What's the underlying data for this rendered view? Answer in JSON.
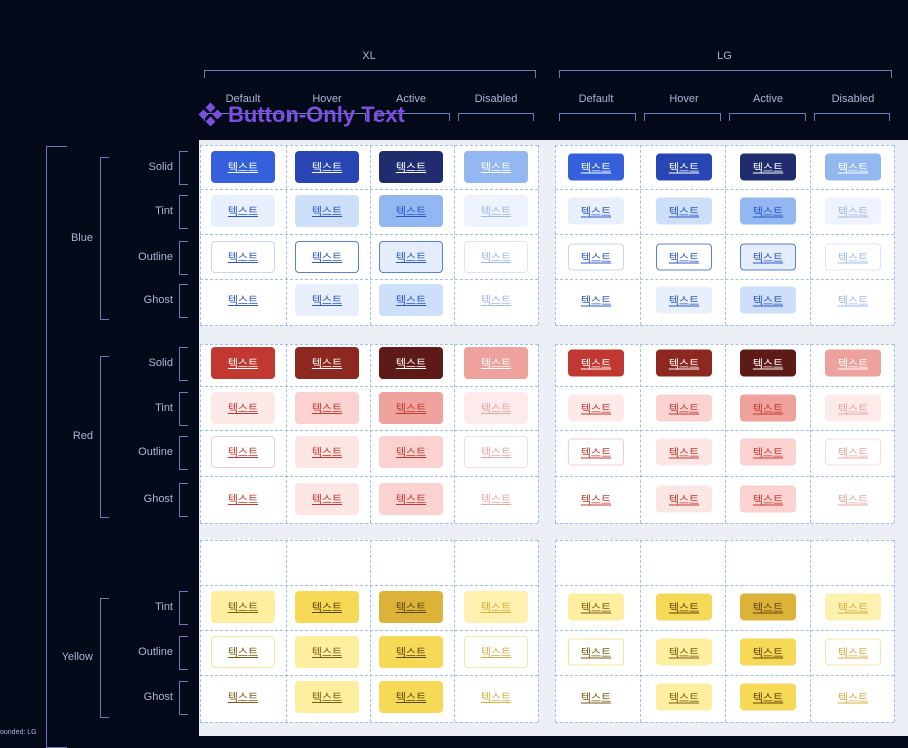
{
  "title": "Button-Only Text",
  "button_text": "텍스트",
  "sizes": [
    {
      "label": "XL",
      "states": [
        "Default",
        "Hover",
        "Active",
        "Disabled"
      ]
    },
    {
      "label": "LG",
      "states": [
        "Default",
        "Hover",
        "Active",
        "Disabled"
      ]
    }
  ],
  "groups": [
    {
      "name": "Blue",
      "variants": [
        "Solid",
        "Tint",
        "Outline",
        "Ghost"
      ]
    },
    {
      "name": "Red",
      "variants": [
        "Solid",
        "Tint",
        "Outline",
        "Ghost"
      ]
    },
    {
      "name": "Yellow",
      "variants": [
        "Tint",
        "Outline",
        "Ghost"
      ]
    }
  ],
  "caption": "ounded: LG",
  "colors": {
    "background": "#050a1a",
    "label": "#aab6d8",
    "bracket": "#6b7ab8",
    "title": "#7b4fe0",
    "grid": "#9cc0ef"
  },
  "button_styles": {
    "Blue": {
      "Solid": [
        [
          "#3460dc",
          "#fff",
          ""
        ],
        [
          "#2845b4",
          "#fff",
          ""
        ],
        [
          "#1f2d6e",
          "#fff",
          ""
        ],
        [
          "#93b7f0",
          "#fff",
          ""
        ]
      ],
      "Tint": [
        [
          "#e8f0fd",
          "#2d56c7",
          ""
        ],
        [
          "#cddff9",
          "#2d56c7",
          ""
        ],
        [
          "#93b7f0",
          "#2d56c7",
          ""
        ],
        [
          "#eef3fd",
          "#9db9ea",
          ""
        ]
      ],
      "Outline": [
        [
          "#ffffff",
          "#2d56c7",
          "#c6d6f4"
        ],
        [
          "#ffffff",
          "#2d56c7",
          "#5b7fd4"
        ],
        [
          "#e4edfc",
          "#2d56c7",
          "#5b7fd4"
        ],
        [
          "#ffffff",
          "#9db9ea",
          "#dbe5f8"
        ]
      ],
      "Ghost": [
        [
          "transparent",
          "#2d56c7",
          ""
        ],
        [
          "#e8f0fd",
          "#2d56c7",
          ""
        ],
        [
          "#cddff9",
          "#2d56c7",
          ""
        ],
        [
          "transparent",
          "#9db9ea",
          ""
        ]
      ]
    },
    "Red": {
      "Solid": [
        [
          "#c0382f",
          "#fff",
          ""
        ],
        [
          "#8c2820",
          "#fff",
          ""
        ],
        [
          "#5e1a17",
          "#fff",
          ""
        ],
        [
          "#eda29e",
          "#fff",
          ""
        ]
      ],
      "Tint": [
        [
          "#fce9e8",
          "#c2382f",
          ""
        ],
        [
          "#fbd2d0",
          "#c2382f",
          ""
        ],
        [
          "#f0a29e",
          "#c2382f",
          ""
        ],
        [
          "#fcebea",
          "#eaa6a2",
          ""
        ]
      ],
      "Outline": [
        [
          "#ffffff",
          "#c2382f",
          "#f4cdca"
        ],
        [
          "#fce6e4",
          "#c2382f",
          ""
        ],
        [
          "#fbd2d0",
          "#c2382f",
          ""
        ],
        [
          "#ffffff",
          "#eaa6a2",
          "#f6dedc"
        ]
      ],
      "Ghost": [
        [
          "transparent",
          "#c2382f",
          ""
        ],
        [
          "#fce6e4",
          "#c2382f",
          ""
        ],
        [
          "#fbd2d0",
          "#c2382f",
          ""
        ],
        [
          "transparent",
          "#eaa6a2",
          ""
        ]
      ]
    },
    "Yellow": {
      "Tint": [
        [
          "#fdeea0",
          "#7a5a10",
          ""
        ],
        [
          "#f7d958",
          "#5e450c",
          ""
        ],
        [
          "#ddb238",
          "#5e450c",
          ""
        ],
        [
          "#fdf1b0",
          "#d4b040",
          ""
        ]
      ],
      "Outline": [
        [
          "#ffffff",
          "#7a5a10",
          "#f5e29a"
        ],
        [
          "#fdeea0",
          "#7a5a10",
          ""
        ],
        [
          "#f7d958",
          "#5e450c",
          ""
        ],
        [
          "#ffffff",
          "#d4b040",
          "#f7e7a8"
        ]
      ],
      "Ghost": [
        [
          "transparent",
          "#7a5a10",
          ""
        ],
        [
          "#fdeea0",
          "#7a5a10",
          ""
        ],
        [
          "#f7d958",
          "#5e450c",
          ""
        ],
        [
          "transparent",
          "#d4b040",
          ""
        ]
      ]
    }
  }
}
